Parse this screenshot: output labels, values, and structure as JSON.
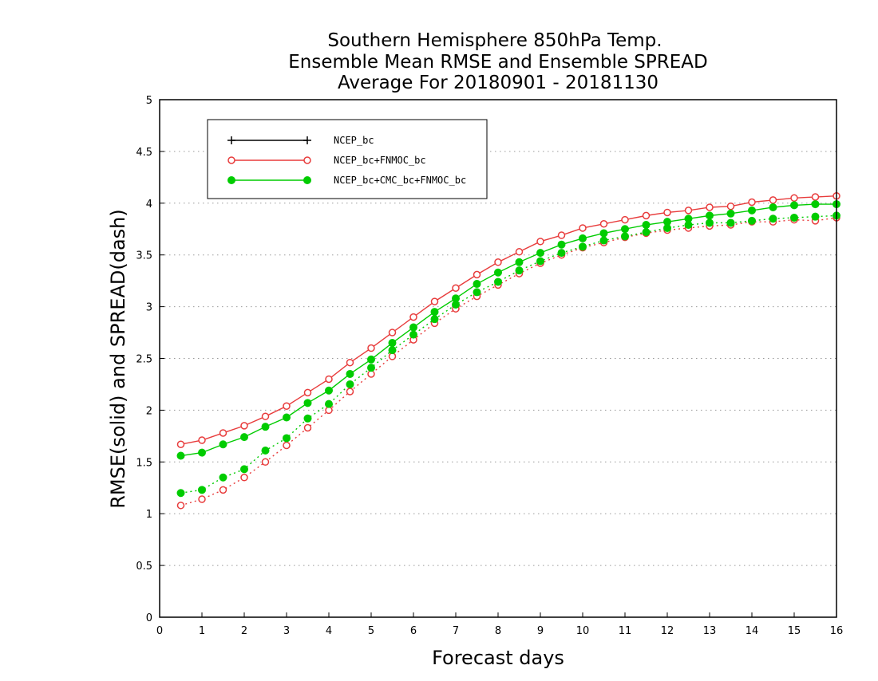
{
  "chart_data": {
    "type": "line",
    "title": [
      "Southern Hemisphere 850hPa Temp.",
      "Ensemble Mean RMSE and Ensemble SPREAD",
      "Average For 20180901 - 20181130"
    ],
    "xlabel": "Forecast days",
    "ylabel": "RMSE(solid) and SPREAD(dash)",
    "xlim": [
      0,
      16
    ],
    "ylim": [
      0,
      5
    ],
    "xticks": [
      "0",
      "1",
      "2",
      "3",
      "4",
      "5",
      "6",
      "7",
      "8",
      "9",
      "10",
      "11",
      "12",
      "13",
      "14",
      "15",
      "16"
    ],
    "yticks": [
      "0",
      "0.5",
      "1",
      "1.5",
      "2",
      "2.5",
      "3",
      "3.5",
      "4",
      "4.5",
      "5"
    ],
    "grid": "horizontal-dotted",
    "legend_position": "top-left",
    "x": [
      0.5,
      1,
      1.5,
      2,
      2.5,
      3,
      3.5,
      4,
      4.5,
      5,
      5.5,
      6,
      6.5,
      7,
      7.5,
      8,
      8.5,
      9,
      9.5,
      10,
      10.5,
      11,
      11.5,
      12,
      12.5,
      13,
      13.5,
      14,
      14.5,
      15,
      15.5,
      16
    ],
    "series": [
      {
        "name": "NCEP_bc",
        "color": "#000000",
        "marker": "plus",
        "rmse": [],
        "spread": []
      },
      {
        "name": "NCEP_bc+FNMOC_bc",
        "color": "#e83c3c",
        "marker": "open-circle",
        "rmse": [
          1.67,
          1.71,
          1.78,
          1.85,
          1.94,
          2.04,
          2.17,
          2.3,
          2.46,
          2.6,
          2.75,
          2.9,
          3.05,
          3.18,
          3.31,
          3.43,
          3.53,
          3.63,
          3.69,
          3.76,
          3.8,
          3.84,
          3.88,
          3.91,
          3.93,
          3.96,
          3.97,
          4.01,
          4.03,
          4.05,
          4.06,
          4.07
        ],
        "spread": [
          1.08,
          1.14,
          1.23,
          1.35,
          1.5,
          1.66,
          1.83,
          2.0,
          2.18,
          2.35,
          2.52,
          2.68,
          2.84,
          2.98,
          3.1,
          3.21,
          3.32,
          3.42,
          3.5,
          3.57,
          3.62,
          3.67,
          3.71,
          3.74,
          3.76,
          3.78,
          3.79,
          3.82,
          3.82,
          3.84,
          3.83,
          3.86
        ]
      },
      {
        "name": "NCEP_bc+CMC_bc+FNMOC_bc",
        "color": "#00cc00",
        "marker": "filled-circle",
        "rmse": [
          1.56,
          1.59,
          1.67,
          1.74,
          1.84,
          1.93,
          2.07,
          2.19,
          2.35,
          2.49,
          2.65,
          2.8,
          2.95,
          3.08,
          3.22,
          3.33,
          3.43,
          3.52,
          3.6,
          3.66,
          3.71,
          3.75,
          3.79,
          3.82,
          3.85,
          3.88,
          3.9,
          3.93,
          3.96,
          3.98,
          3.99,
          3.99
        ],
        "spread": [
          1.2,
          1.23,
          1.35,
          1.43,
          1.61,
          1.73,
          1.92,
          2.06,
          2.25,
          2.41,
          2.58,
          2.73,
          2.88,
          3.02,
          3.14,
          3.24,
          3.35,
          3.44,
          3.52,
          3.58,
          3.64,
          3.68,
          3.72,
          3.76,
          3.79,
          3.81,
          3.81,
          3.83,
          3.85,
          3.86,
          3.87,
          3.88
        ]
      }
    ]
  }
}
